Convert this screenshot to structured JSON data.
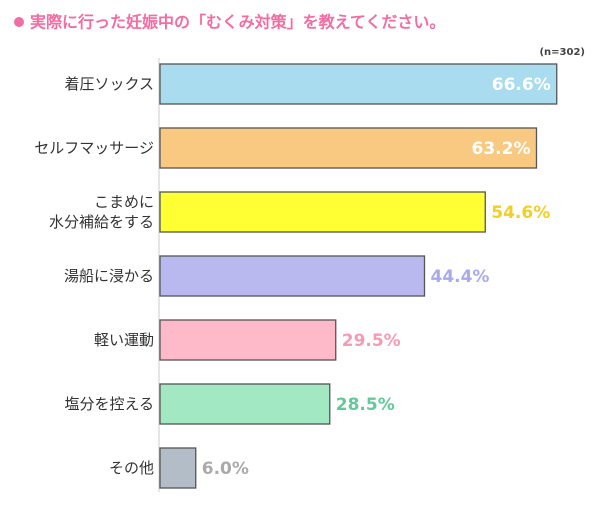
{
  "chart_data": {
    "type": "bar",
    "orientation": "horizontal",
    "title": "実際に行った妊娠中の「むくみ対策」を教えてください。",
    "note": "(n=302)",
    "categories": [
      "着圧ソックス",
      "セルフマッサージ",
      "こまめに\n水分補給をする",
      "湯船に浸かる",
      "軽い運動",
      "塩分を控える",
      "その他"
    ],
    "values": [
      66.6,
      63.2,
      54.6,
      44.4,
      29.5,
      28.5,
      6.0
    ],
    "value_labels": [
      "66.6%",
      "63.2%",
      "54.6%",
      "44.4%",
      "29.5%",
      "28.5%",
      "6.0%"
    ],
    "colors": [
      "#a9dcef",
      "#f9c982",
      "#ffff33",
      "#b9b9f0",
      "#ffbac9",
      "#a2e9c3",
      "#b2bdc8"
    ],
    "label_colors": [
      "#ffffff",
      "#ffffff",
      "#f3cf22",
      "#a9a9ee",
      "#f59bb2",
      "#62c99a",
      "#aaaaaa"
    ],
    "xlim": [
      0,
      70
    ]
  }
}
